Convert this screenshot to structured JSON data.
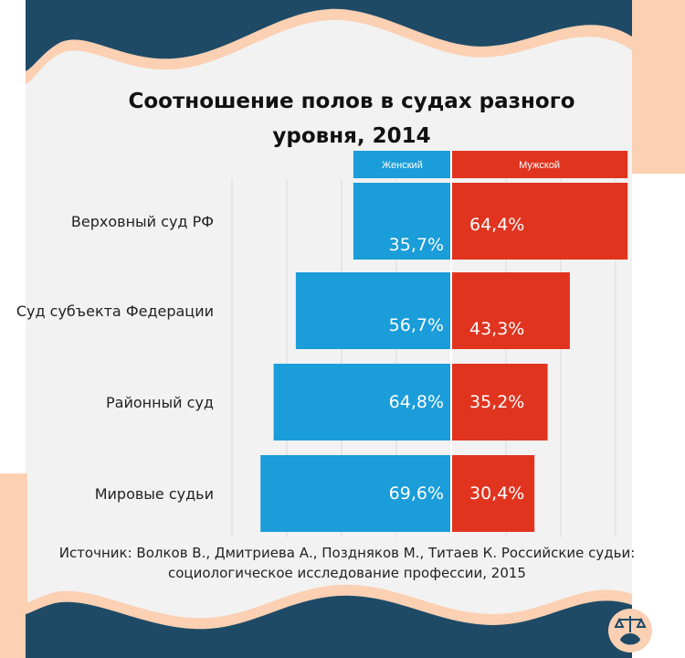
{
  "title": "Соотношение полов в судах разного уровня, 2014",
  "source": "Источник: Волков В., Дмитриева А., Поздняков М., Титаев К. Российские судьи: социологическое исследование профессии, 2015",
  "colors": {
    "female": "#1a9dd9",
    "male": "#e0341f",
    "navy": "#1e4a66",
    "peach": "#fbd0b3",
    "pageBg": "#f2f2f2"
  },
  "logo_icon": "scales-cat-icon",
  "chart_data": {
    "type": "bar",
    "orientation": "horizontal-diverging",
    "title": "Соотношение полов в судах разного уровня, 2014",
    "categories": [
      "Верховный  суд РФ",
      "Суд субъекта Федерации",
      "Районный  суд",
      "Мировые  судьи"
    ],
    "series": [
      {
        "name": "Женский",
        "values": [
          35.7,
          56.7,
          64.8,
          69.6
        ],
        "labels": [
          "35,7%",
          "56,7%",
          "64,8%",
          "69,6%"
        ],
        "color": "#1a9dd9"
      },
      {
        "name": "Мужской",
        "values": [
          64.4,
          43.3,
          35.2,
          30.4
        ],
        "labels": [
          "64,4%",
          "43,3%",
          "35,2%",
          "30,4%"
        ],
        "color": "#e0341f"
      }
    ],
    "legend": "top",
    "grid": true,
    "unit": "%"
  }
}
